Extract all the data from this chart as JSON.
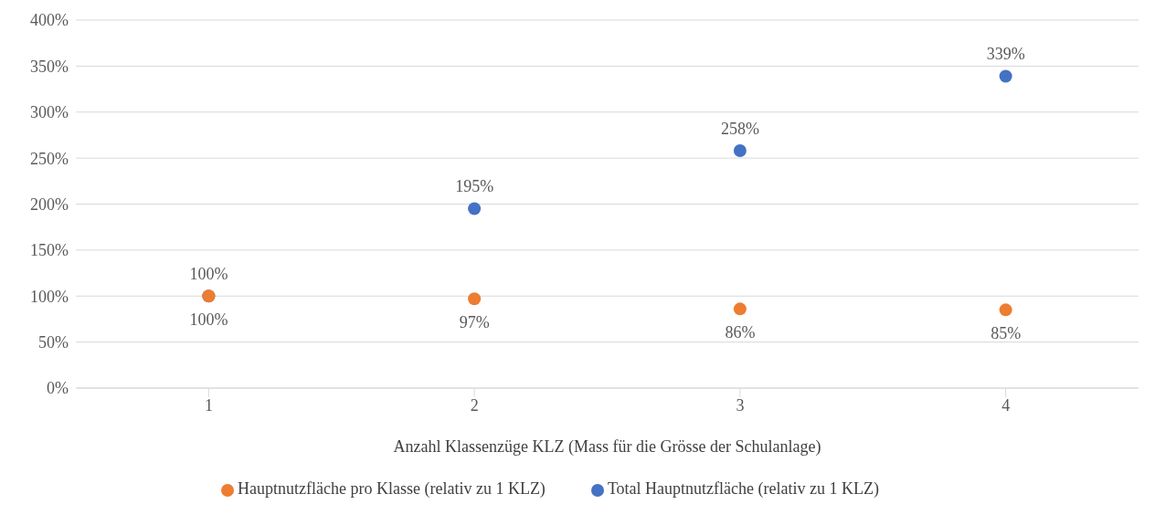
{
  "chart_data": {
    "type": "scatter",
    "xlabel": "Anzahl Klassenzüge KLZ (Mass für die Grösse der Schulanlage)",
    "x": [
      1,
      2,
      3,
      4
    ],
    "xlim": [
      0.5,
      4.5
    ],
    "xticks": [
      1,
      2,
      3,
      4
    ],
    "ylim": [
      0,
      400
    ],
    "yticks": [
      {
        "value": 0,
        "label": "0%"
      },
      {
        "value": 50,
        "label": "50%"
      },
      {
        "value": 100,
        "label": "100%"
      },
      {
        "value": 150,
        "label": "150%"
      },
      {
        "value": 200,
        "label": "200%"
      },
      {
        "value": 250,
        "label": "250%"
      },
      {
        "value": 300,
        "label": "300%"
      },
      {
        "value": 350,
        "label": "350%"
      },
      {
        "value": 400,
        "label": "400%"
      }
    ],
    "series": [
      {
        "name": "Total Hauptnutzfläche (relativ zu 1 KLZ)",
        "color": "#4472c4",
        "values": [
          100,
          195,
          258,
          339
        ],
        "value_labels": [
          "100%",
          "195%",
          "258%",
          "339%"
        ]
      },
      {
        "name": "Hauptnutzfläche pro Klasse (relativ zu 1 KLZ)",
        "color": "#ed7d31",
        "values": [
          100,
          97,
          86,
          85
        ],
        "value_labels": [
          "100%",
          "97%",
          "86%",
          "85%"
        ]
      }
    ],
    "grid": "y",
    "legend": "bottom",
    "marker": "circle"
  }
}
